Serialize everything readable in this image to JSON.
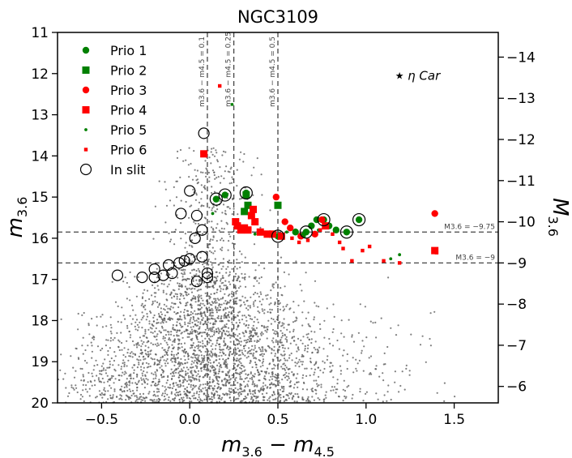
{
  "chart_data": {
    "type": "scatter",
    "title": "NGC3109",
    "xlabel_main": "m",
    "xlabel_sub1": "3.6",
    "xlabel_mid": " − m",
    "xlabel_sub2": "4.5",
    "ylabel_main": "m",
    "ylabel_sub": "3.6",
    "y2label_main": "M",
    "y2label_sub": "3.6",
    "xlim": [
      -0.75,
      1.75
    ],
    "ylim": [
      20,
      11
    ],
    "x_ticks": [
      -0.5,
      0.0,
      0.5,
      1.0,
      1.5
    ],
    "x_tick_labels": [
      "−0.5",
      "0.0",
      "0.5",
      "1.0",
      "1.5"
    ],
    "y_ticks": [
      11,
      12,
      13,
      14,
      15,
      16,
      17,
      18,
      19,
      20
    ],
    "y_tick_labels": [
      "11",
      "12",
      "13",
      "14",
      "15",
      "16",
      "17",
      "18",
      "19",
      "20"
    ],
    "y2_offset": -25.6,
    "y2_ticks": [
      -14,
      -13,
      -12,
      -11,
      -10,
      -9,
      -8,
      -7,
      -6
    ],
    "y2_tick_labels": [
      "−14",
      "−13",
      "−12",
      "−11",
      "−10",
      "−9",
      "−8",
      "−7",
      "−6"
    ],
    "vlines": [
      {
        "x": 0.1,
        "label": "m3.6 − m4.5 = 0.1"
      },
      {
        "x": 0.25,
        "label": "m3.6 − m4.5 = 0.25"
      },
      {
        "x": 0.5,
        "label": "m3.6 − m4.5 = 0.5"
      }
    ],
    "hlines": [
      {
        "y": 15.85,
        "label": "M3.6 = −9.75"
      },
      {
        "y": 16.6,
        "label": "M3.6 = −9"
      }
    ],
    "legend": [
      {
        "label": "Prio 1",
        "marker": "circle",
        "color": "#008000"
      },
      {
        "label": "Prio 2",
        "marker": "square",
        "color": "#008000"
      },
      {
        "label": "Prio 3",
        "marker": "circle",
        "color": "#ff0000"
      },
      {
        "label": "Prio 4",
        "marker": "square",
        "color": "#ff0000"
      },
      {
        "label": "Prio 5",
        "marker": "small-circle",
        "color": "#008000"
      },
      {
        "label": "Prio 6",
        "marker": "small-square",
        "color": "#ff0000"
      },
      {
        "label": "In slit",
        "marker": "open-circle",
        "color": "#000000"
      }
    ],
    "annotation": {
      "label": "η Car",
      "x": 1.19,
      "y": 12.05
    },
    "background_cloud": {
      "description": "thousands of grey field stars",
      "color": "#555555",
      "count": 3200,
      "center_x": 0.1,
      "center_y": 18.2,
      "x_spread": 0.3,
      "y_range": [
        13.8,
        20
      ]
    },
    "series": [
      {
        "name": "Prio 1",
        "marker": "circle",
        "color": "#008000",
        "points": [
          [
            0.15,
            15.05
          ],
          [
            0.2,
            14.95
          ],
          [
            0.32,
            14.9
          ],
          [
            0.5,
            15.95
          ],
          [
            0.6,
            15.85
          ],
          [
            0.66,
            15.85
          ],
          [
            0.69,
            15.7
          ],
          [
            0.72,
            15.55
          ],
          [
            0.76,
            15.55
          ],
          [
            0.79,
            15.7
          ],
          [
            0.83,
            15.8
          ],
          [
            0.89,
            15.85
          ],
          [
            0.96,
            15.55
          ]
        ]
      },
      {
        "name": "Prio 2",
        "marker": "square",
        "color": "#008000",
        "points": [
          [
            0.32,
            14.95
          ],
          [
            0.31,
            15.35
          ],
          [
            0.33,
            15.2
          ],
          [
            0.5,
            15.2
          ]
        ]
      },
      {
        "name": "Prio 3",
        "marker": "circle",
        "color": "#ff0000",
        "points": [
          [
            0.49,
            15.0
          ],
          [
            0.54,
            15.6
          ],
          [
            0.57,
            15.75
          ],
          [
            0.63,
            15.95
          ],
          [
            0.71,
            15.9
          ],
          [
            0.75,
            15.55
          ],
          [
            1.39,
            15.4
          ]
        ]
      },
      {
        "name": "Prio 4",
        "marker": "square",
        "color": "#ff0000",
        "points": [
          [
            0.26,
            15.6
          ],
          [
            0.27,
            15.7
          ],
          [
            0.29,
            15.8
          ],
          [
            0.31,
            15.75
          ],
          [
            0.33,
            15.8
          ],
          [
            0.35,
            15.45
          ],
          [
            0.36,
            15.3
          ],
          [
            0.37,
            15.6
          ],
          [
            0.4,
            15.85
          ],
          [
            0.44,
            15.9
          ],
          [
            0.47,
            15.9
          ],
          [
            0.52,
            15.95
          ],
          [
            0.77,
            15.7
          ],
          [
            0.08,
            13.95
          ],
          [
            1.39,
            16.3
          ]
        ]
      },
      {
        "name": "Prio 5",
        "marker": "small-circle",
        "color": "#008000",
        "points": [
          [
            0.24,
            12.75
          ],
          [
            0.13,
            15.4
          ],
          [
            0.55,
            15.85
          ],
          [
            0.64,
            15.9
          ],
          [
            0.65,
            15.95
          ],
          [
            1.14,
            16.5
          ],
          [
            1.19,
            16.4
          ],
          [
            0.37,
            15.9
          ],
          [
            0.6,
            15.8
          ],
          [
            0.73,
            15.8
          ]
        ]
      },
      {
        "name": "Prio 6",
        "marker": "small-square",
        "color": "#ff0000",
        "points": [
          [
            0.17,
            12.3
          ],
          [
            0.58,
            16.0
          ],
          [
            0.62,
            16.1
          ],
          [
            0.74,
            15.8
          ],
          [
            0.85,
            16.1
          ],
          [
            0.87,
            16.25
          ],
          [
            0.92,
            16.55
          ],
          [
            0.98,
            16.3
          ],
          [
            1.02,
            16.2
          ],
          [
            1.1,
            16.55
          ],
          [
            1.19,
            16.6
          ],
          [
            1.4,
            16.35
          ],
          [
            0.81,
            15.9
          ],
          [
            0.67,
            16.05
          ]
        ]
      },
      {
        "name": "In slit",
        "marker": "open-circle",
        "color": "#000000",
        "points": [
          [
            0.08,
            13.45
          ],
          [
            0.0,
            14.85
          ],
          [
            -0.05,
            15.4
          ],
          [
            0.04,
            15.45
          ],
          [
            0.07,
            15.8
          ],
          [
            0.03,
            16.0
          ],
          [
            0.07,
            16.45
          ],
          [
            0.0,
            16.5
          ],
          [
            -0.03,
            16.55
          ],
          [
            -0.06,
            16.6
          ],
          [
            -0.12,
            16.65
          ],
          [
            -0.2,
            16.75
          ],
          [
            -0.1,
            16.85
          ],
          [
            -0.15,
            16.9
          ],
          [
            -0.2,
            16.95
          ],
          [
            -0.27,
            16.95
          ],
          [
            -0.41,
            16.9
          ],
          [
            0.04,
            17.05
          ],
          [
            0.1,
            16.85
          ],
          [
            0.1,
            16.95
          ],
          [
            0.15,
            15.05
          ],
          [
            0.2,
            14.95
          ],
          [
            0.32,
            14.9
          ],
          [
            0.5,
            15.95
          ],
          [
            0.66,
            15.85
          ],
          [
            0.76,
            15.55
          ],
          [
            0.89,
            15.85
          ],
          [
            0.96,
            15.55
          ]
        ]
      }
    ]
  }
}
